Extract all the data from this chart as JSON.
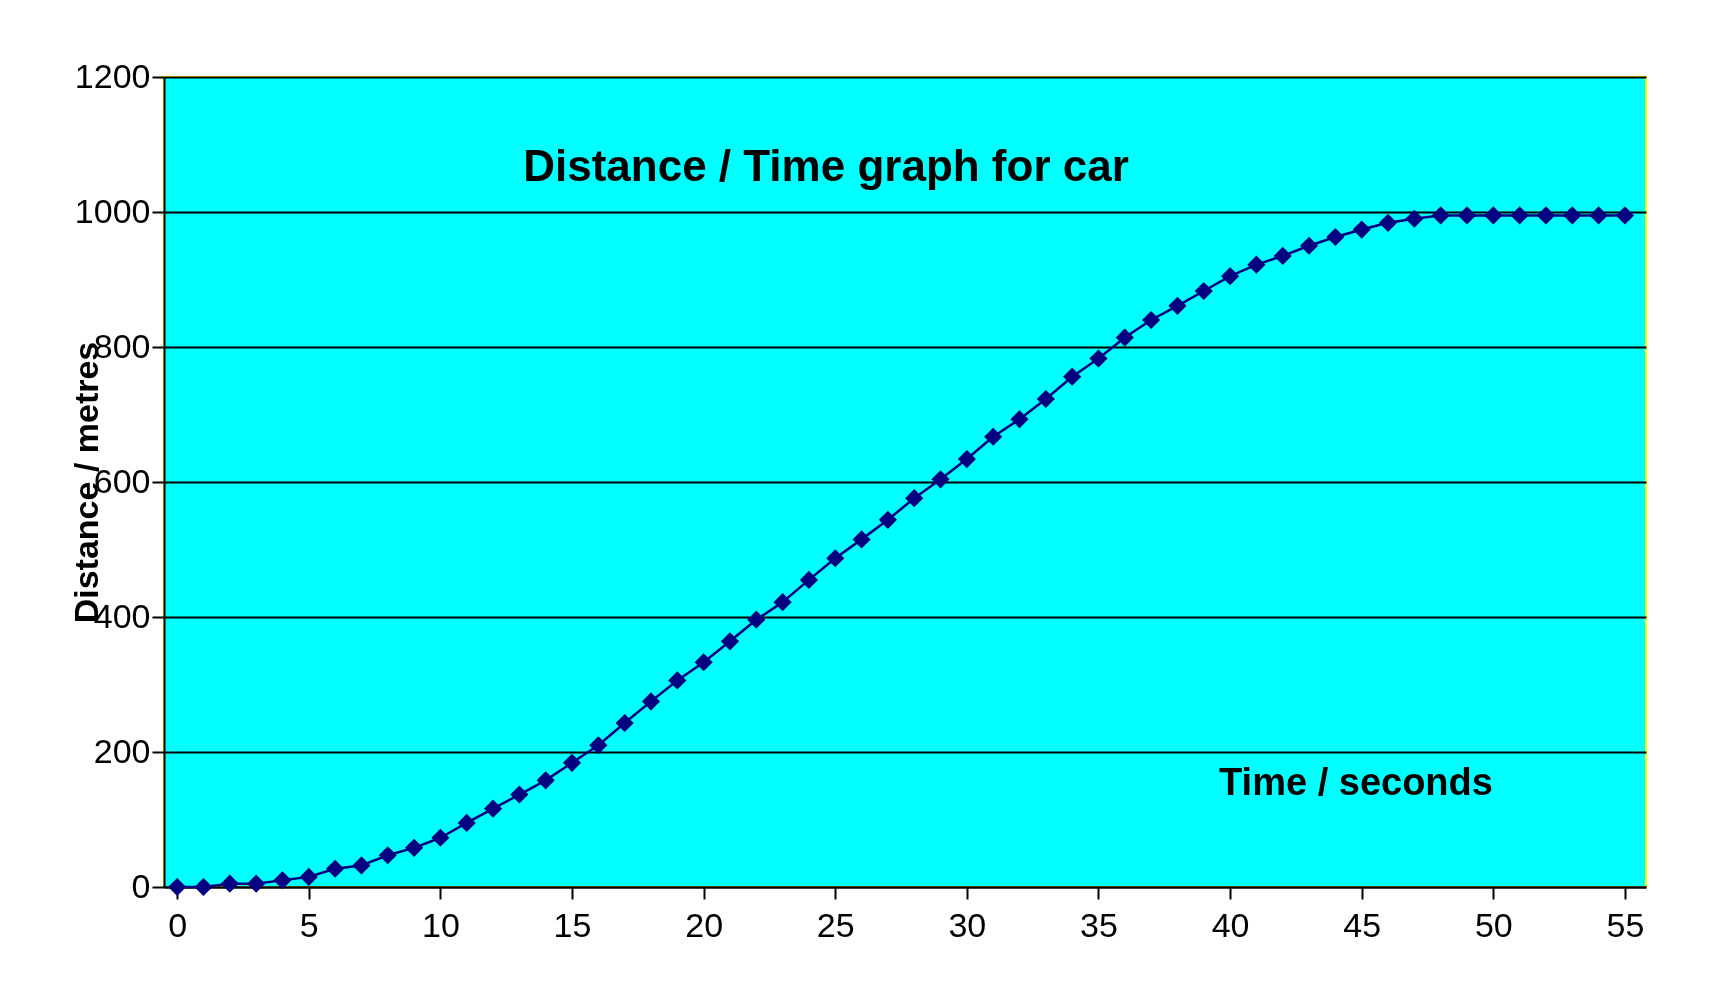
{
  "chart_data": {
    "type": "line",
    "title": "Distance / Time graph for car",
    "xlabel": "Time / seconds",
    "ylabel": "Distance / metres",
    "x": [
      0,
      1,
      2,
      3,
      4,
      5,
      6,
      7,
      8,
      9,
      10,
      11,
      12,
      13,
      14,
      15,
      16,
      17,
      18,
      19,
      20,
      21,
      22,
      23,
      24,
      25,
      26,
      27,
      28,
      29,
      30,
      31,
      32,
      33,
      34,
      35,
      36,
      37,
      38,
      39,
      40,
      41,
      42,
      43,
      44,
      45,
      46,
      47,
      48,
      49,
      50,
      51,
      52,
      53,
      54,
      55
    ],
    "series": [
      {
        "color": "#000080",
        "values": [
          0,
          0,
          5,
          5,
          10,
          15,
          27,
          32,
          47,
          58,
          73,
          95,
          116,
          137,
          158,
          184,
          210,
          243,
          275,
          306,
          333,
          364,
          396,
          422,
          455,
          487,
          515,
          544,
          576,
          604,
          634,
          667,
          693,
          723,
          756,
          783,
          814,
          840,
          861,
          883,
          905,
          922,
          935,
          950,
          963,
          974,
          984,
          990,
          995,
          995,
          995,
          995,
          995,
          995,
          995,
          995
        ]
      }
    ],
    "xlim": [
      -0.5,
      55.8
    ],
    "ylim": [
      0,
      1200
    ],
    "xticks": [
      0,
      5,
      10,
      15,
      20,
      25,
      30,
      35,
      40,
      45,
      50,
      55
    ],
    "yticks": [
      0,
      200,
      400,
      600,
      800,
      1000,
      1200
    ],
    "grid": "y",
    "marker": "diamond",
    "line_style": "solid"
  }
}
